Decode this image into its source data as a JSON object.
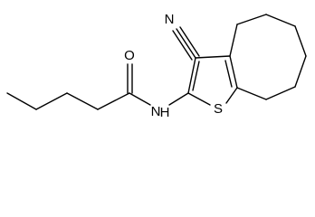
{
  "atoms": {
    "nitrile_n": "N",
    "carbonyl_o": "O",
    "amide_n": "N",
    "amide_h": "H",
    "thiophene_s": "S"
  }
}
